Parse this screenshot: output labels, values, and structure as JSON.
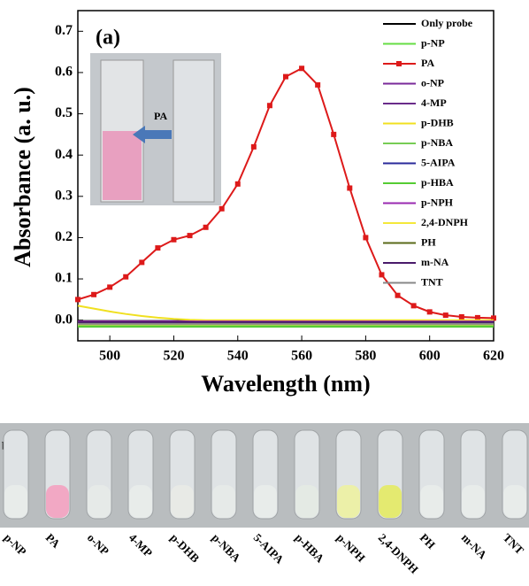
{
  "chart_data": {
    "type": "line",
    "annotation": "(a)",
    "inset_label": "PA",
    "xlabel": "Wavelength (nm)",
    "ylabel": "Absorbance (a. u.)",
    "xlim": [
      490,
      620
    ],
    "ylim": [
      -0.05,
      0.75
    ],
    "xticks": [
      500,
      520,
      540,
      560,
      580,
      600,
      620
    ],
    "yticks": [
      {
        "value": 0,
        "label": "0.0"
      },
      0.1,
      0.2,
      0.3,
      0.4,
      0.5,
      0.6,
      0.7
    ],
    "x": [
      490,
      495,
      500,
      505,
      510,
      515,
      520,
      525,
      530,
      535,
      540,
      545,
      550,
      555,
      560,
      565,
      570,
      575,
      580,
      585,
      590,
      595,
      600,
      605,
      610,
      615,
      620
    ],
    "series": [
      {
        "name": "Only probe",
        "color": "#000000",
        "values": [
          -0.002,
          -0.002,
          -0.002,
          -0.002,
          -0.002,
          -0.002,
          -0.002,
          -0.002,
          -0.002,
          -0.002,
          -0.002,
          -0.002,
          -0.002,
          -0.002,
          -0.002,
          -0.002,
          -0.002,
          -0.002,
          -0.002,
          -0.002,
          -0.002,
          -0.002,
          -0.002,
          -0.002,
          -0.002,
          -0.002,
          -0.002
        ]
      },
      {
        "name": "p-NP",
        "color": "#66dd44",
        "values": [
          -0.012,
          -0.012,
          -0.012,
          -0.012,
          -0.012,
          -0.012,
          -0.012,
          -0.012,
          -0.012,
          -0.012,
          -0.012,
          -0.012,
          -0.012,
          -0.012,
          -0.012,
          -0.012,
          -0.012,
          -0.012,
          -0.012,
          -0.012,
          -0.012,
          -0.012,
          -0.012,
          -0.012,
          -0.012,
          -0.012,
          -0.012
        ]
      },
      {
        "name": "PA",
        "color": "#dd1a1a",
        "marker": "square",
        "values": [
          0.05,
          0.062,
          0.08,
          0.105,
          0.14,
          0.175,
          0.195,
          0.205,
          0.225,
          0.27,
          0.33,
          0.42,
          0.52,
          0.59,
          0.61,
          0.57,
          0.45,
          0.32,
          0.2,
          0.11,
          0.06,
          0.035,
          0.02,
          0.012,
          0.008,
          0.006,
          0.005
        ]
      },
      {
        "name": "o-NP",
        "color": "#7a2a9a",
        "values": [
          -0.006,
          -0.006,
          -0.006,
          -0.006,
          -0.006,
          -0.006,
          -0.006,
          -0.006,
          -0.006,
          -0.006,
          -0.006,
          -0.006,
          -0.006,
          -0.006,
          -0.006,
          -0.006,
          -0.006,
          -0.006,
          -0.006,
          -0.006,
          -0.006,
          -0.006,
          -0.006,
          -0.006,
          -0.006,
          -0.006,
          -0.006
        ]
      },
      {
        "name": "4-MP",
        "color": "#6a2c8a",
        "values": [
          -0.004,
          -0.004,
          -0.004,
          -0.004,
          -0.004,
          -0.004,
          -0.004,
          -0.004,
          -0.004,
          -0.004,
          -0.004,
          -0.004,
          -0.004,
          -0.004,
          -0.004,
          -0.004,
          -0.004,
          -0.004,
          -0.004,
          -0.004,
          -0.004,
          -0.004,
          -0.004,
          -0.004,
          -0.004,
          -0.004,
          -0.004
        ]
      },
      {
        "name": "p-DHB",
        "color": "#f0e020",
        "values": [
          0.035,
          0.028,
          0.021,
          0.015,
          0.01,
          0.006,
          0.003,
          0.001,
          0,
          0,
          0,
          0,
          0,
          0,
          0,
          0,
          0,
          0,
          0,
          0,
          0,
          0,
          0,
          0,
          0,
          0,
          0
        ]
      },
      {
        "name": "p-NBA",
        "color": "#77cc55",
        "values": [
          -0.014,
          -0.014,
          -0.014,
          -0.014,
          -0.014,
          -0.014,
          -0.014,
          -0.014,
          -0.014,
          -0.014,
          -0.014,
          -0.014,
          -0.014,
          -0.014,
          -0.014,
          -0.014,
          -0.014,
          -0.014,
          -0.014,
          -0.014,
          -0.014,
          -0.014,
          -0.014,
          -0.014,
          -0.014,
          -0.014,
          -0.014
        ]
      },
      {
        "name": "5-AIPA",
        "color": "#2a2a9a",
        "values": [
          -0.008,
          -0.008,
          -0.008,
          -0.008,
          -0.008,
          -0.008,
          -0.008,
          -0.008,
          -0.008,
          -0.008,
          -0.008,
          -0.008,
          -0.008,
          -0.008,
          -0.008,
          -0.008,
          -0.008,
          -0.008,
          -0.008,
          -0.008,
          -0.008,
          -0.008,
          -0.008,
          -0.008,
          -0.008,
          -0.008,
          -0.008
        ]
      },
      {
        "name": "p-HBA",
        "color": "#55cc33",
        "values": [
          -0.016,
          -0.016,
          -0.016,
          -0.016,
          -0.016,
          -0.016,
          -0.016,
          -0.016,
          -0.016,
          -0.016,
          -0.016,
          -0.016,
          -0.016,
          -0.016,
          -0.016,
          -0.016,
          -0.016,
          -0.016,
          -0.016,
          -0.016,
          -0.016,
          -0.016,
          -0.016,
          -0.016,
          -0.016,
          -0.016,
          -0.016
        ]
      },
      {
        "name": "p-NPH",
        "color": "#9a2ab0",
        "values": [
          -0.003,
          -0.003,
          -0.003,
          -0.003,
          -0.003,
          -0.003,
          -0.003,
          -0.003,
          -0.003,
          -0.003,
          -0.003,
          -0.003,
          -0.003,
          -0.003,
          -0.003,
          -0.003,
          -0.003,
          -0.003,
          -0.003,
          -0.003,
          -0.003,
          -0.003,
          -0.003,
          -0.003,
          -0.003,
          -0.003,
          -0.003
        ]
      },
      {
        "name": "2,4-DNPH",
        "color": "#f4e83a",
        "values": [
          -0.01,
          -0.01,
          -0.01,
          -0.01,
          -0.01,
          -0.01,
          -0.01,
          -0.01,
          -0.01,
          -0.01,
          -0.01,
          -0.01,
          -0.01,
          -0.01,
          -0.01,
          -0.01,
          -0.01,
          -0.01,
          -0.01,
          -0.01,
          -0.01,
          -0.01,
          -0.01,
          -0.01,
          -0.01,
          -0.01,
          -0.01
        ]
      },
      {
        "name": "PH",
        "color": "#5a6a1a",
        "values": [
          -0.007,
          -0.007,
          -0.007,
          -0.007,
          -0.007,
          -0.007,
          -0.007,
          -0.007,
          -0.007,
          -0.007,
          -0.007,
          -0.007,
          -0.007,
          -0.007,
          -0.007,
          -0.007,
          -0.007,
          -0.007,
          -0.007,
          -0.007,
          -0.007,
          -0.007,
          -0.007,
          -0.007,
          -0.007,
          -0.007,
          -0.007
        ]
      },
      {
        "name": "m-NA",
        "color": "#4a1a6a",
        "values": [
          -0.005,
          -0.005,
          -0.005,
          -0.005,
          -0.005,
          -0.005,
          -0.005,
          -0.005,
          -0.005,
          -0.005,
          -0.005,
          -0.005,
          -0.005,
          -0.005,
          -0.005,
          -0.005,
          -0.005,
          -0.005,
          -0.005,
          -0.005,
          -0.005,
          -0.005,
          -0.005,
          -0.005,
          -0.005,
          -0.005,
          -0.005
        ]
      },
      {
        "name": "TNT",
        "color": "#888888",
        "values": [
          -0.009,
          -0.009,
          -0.009,
          -0.009,
          -0.009,
          -0.009,
          -0.009,
          -0.009,
          -0.009,
          -0.009,
          -0.009,
          -0.009,
          -0.009,
          -0.009,
          -0.009,
          -0.009,
          -0.009,
          -0.009,
          -0.009,
          -0.009,
          -0.009,
          -0.009,
          -0.009,
          -0.009,
          -0.009,
          -0.009,
          -0.009
        ]
      }
    ]
  },
  "photo_b": {
    "label": "b)",
    "vials": [
      "p-NP",
      "PA",
      "o-NP",
      "4-MP",
      "p-DHB",
      "p-NBA",
      "5-AIPA",
      "p-HBA",
      "p-NPH",
      "2,4-DNPH",
      "PH",
      "m-NA",
      "TNT"
    ],
    "colors": [
      "#e8ecea",
      "#f2a8c4",
      "#e6eae8",
      "#e8ecea",
      "#e8eae6",
      "#e6eae8",
      "#e8ecea",
      "#e4eae4",
      "#ecf0a8",
      "#e4ea70",
      "#e8ecea",
      "#e8ecea",
      "#e8ecea"
    ]
  }
}
